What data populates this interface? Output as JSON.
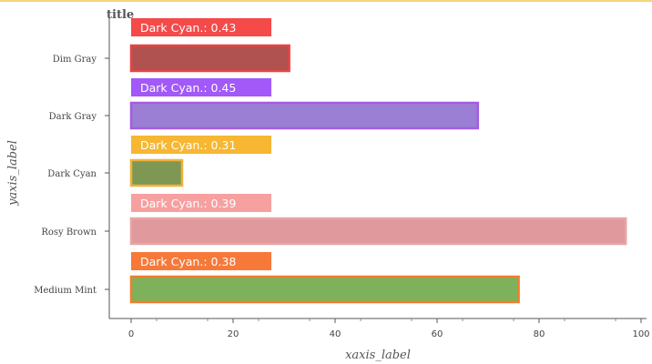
{
  "chart_data": {
    "type": "bar",
    "orientation": "horizontal",
    "title": "title",
    "xlabel": "xaxis_label",
    "ylabel": "yaxis_label",
    "categories": [
      "Medium Mint",
      "Rosy Brown",
      "Dark Cyan",
      "Dark Gray",
      "Dim Gray"
    ],
    "values": [
      76,
      97,
      10,
      68,
      31
    ],
    "xlim": [
      0,
      100
    ],
    "xticks": [
      0,
      20,
      40,
      60,
      80,
      100
    ],
    "grid": false,
    "bar_colors": [
      "#7fb15c",
      "#e0999c",
      "#7e9853",
      "#9a7fd4",
      "#b0524f"
    ],
    "bar_edge_colors": [
      "#f37d2d",
      "#e8a5a5",
      "#f0b23c",
      "#a55ce0",
      "#e84343"
    ],
    "legend": [
      {
        "label": "Dark Cyan.: 0.38",
        "color": "#f6793a"
      },
      {
        "label": "Dark Cyan.: 0.39",
        "color": "#f7a0a0"
      },
      {
        "label": "Dark Cyan.: 0.31",
        "color": "#f7b733"
      },
      {
        "label": "Dark Cyan.: 0.45",
        "color": "#a259f7"
      },
      {
        "label": "Dark Cyan.: 0.43",
        "color": "#f54a4a"
      }
    ]
  }
}
